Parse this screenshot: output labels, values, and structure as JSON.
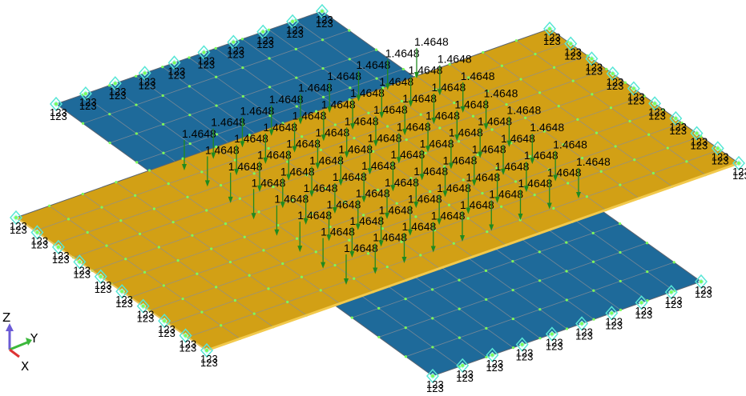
{
  "viewport": {
    "colors": {
      "plate_blue": "#1e6a9a",
      "plate_orange": "#d2a015",
      "mesh_line": "#8a8f96",
      "node": "#7cfc5a",
      "arrow": "#1f8a1f",
      "constraint": "#58e6d6",
      "edge_bar": "#f2c94c"
    },
    "load_label": "1.4648",
    "constraint_label": "123",
    "triad": {
      "z": "Z",
      "y": "Y",
      "x": "X"
    }
  }
}
